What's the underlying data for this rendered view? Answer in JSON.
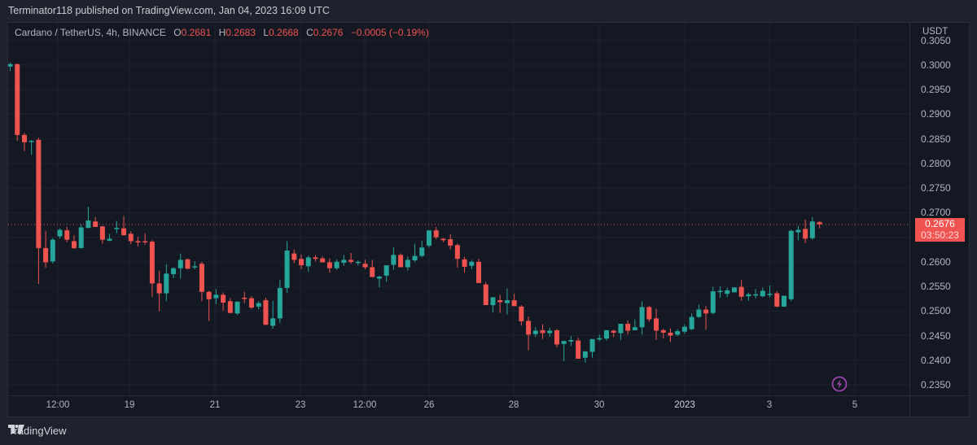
{
  "header": {
    "publisher_line": "Terminator118 published on TradingView.com, Jan 04, 2023 16:09 UTC"
  },
  "legend": {
    "symbol": "Cardano / TetherUS, 4h, BINANCE",
    "open_key": "O",
    "open": "0.2681",
    "high_key": "H",
    "high": "0.2683",
    "low_key": "L",
    "low": "0.2668",
    "close_key": "C",
    "close": "0.2676",
    "change": "−0.0005 (−0.19%)"
  },
  "price_scale": {
    "unit": "USDT",
    "last_price": "0.2676",
    "countdown": "03:50:23"
  },
  "footer": {
    "brand": "TradingView"
  },
  "colors": {
    "up": "#26a69a",
    "down": "#ef5350",
    "background": "#141823",
    "grid": "#1f2330",
    "last_line": "#ef5350",
    "bolt": "#ab47bc"
  },
  "chart_data": {
    "type": "candlestick",
    "title": "Cardano / TetherUS, 4h, BINANCE",
    "xlabel": "",
    "ylabel": "USDT",
    "ylim": [
      0.2335,
      0.3055
    ],
    "grid": true,
    "y_ticks": [
      "0.3050",
      "0.3000",
      "0.2950",
      "0.2900",
      "0.2850",
      "0.2800",
      "0.2750",
      "0.2700",
      "0.2650",
      "0.2600",
      "0.2550",
      "0.2500",
      "0.2450",
      "0.2400",
      "0.2350"
    ],
    "x_ticks": [
      {
        "label": "12:00",
        "x": 71
      },
      {
        "label": "19",
        "x": 159
      },
      {
        "label": "21",
        "x": 264
      },
      {
        "label": "23",
        "x": 369
      },
      {
        "label": "12:00",
        "x": 448
      },
      {
        "label": "26",
        "x": 527
      },
      {
        "label": "28",
        "x": 631
      },
      {
        "label": "30",
        "x": 736
      },
      {
        "label": "2023",
        "x": 841,
        "bold": true
      },
      {
        "label": "3",
        "x": 945
      },
      {
        "label": "5",
        "x": 1050
      }
    ],
    "last_price": 0.2676,
    "candles": [
      [
        0.2997,
        0.3005,
        0.2988,
        0.3002
      ],
      [
        0.3002,
        0.3003,
        0.2846,
        0.2858
      ],
      [
        0.2858,
        0.2862,
        0.2825,
        0.2843
      ],
      [
        0.2845,
        0.2847,
        0.2818,
        0.2846
      ],
      [
        0.2848,
        0.2852,
        0.2555,
        0.2628
      ],
      [
        0.2628,
        0.2663,
        0.2588,
        0.2599
      ],
      [
        0.2601,
        0.2648,
        0.2597,
        0.2645
      ],
      [
        0.2652,
        0.2668,
        0.2647,
        0.2665
      ],
      [
        0.2664,
        0.2671,
        0.264,
        0.2645
      ],
      [
        0.2642,
        0.2654,
        0.2626,
        0.2628
      ],
      [
        0.2628,
        0.2676,
        0.2627,
        0.267
      ],
      [
        0.2669,
        0.2712,
        0.2668,
        0.2684
      ],
      [
        0.2682,
        0.2691,
        0.2677,
        0.2671
      ],
      [
        0.2672,
        0.2673,
        0.2637,
        0.2645
      ],
      [
        0.2643,
        0.2657,
        0.2642,
        0.2647
      ],
      [
        0.2669,
        0.2683,
        0.2658,
        0.2669
      ],
      [
        0.2668,
        0.2693,
        0.2663,
        0.2654
      ],
      [
        0.2657,
        0.2662,
        0.2636,
        0.2642
      ],
      [
        0.2642,
        0.2651,
        0.2631,
        0.2641
      ],
      [
        0.2642,
        0.2658,
        0.2635,
        0.2641
      ],
      [
        0.2641,
        0.2644,
        0.2529,
        0.2556
      ],
      [
        0.2556,
        0.2582,
        0.25,
        0.2536
      ],
      [
        0.2536,
        0.2595,
        0.252,
        0.2576
      ],
      [
        0.2575,
        0.2589,
        0.2567,
        0.2587
      ],
      [
        0.2587,
        0.2617,
        0.2566,
        0.2604
      ],
      [
        0.2605,
        0.2607,
        0.2585,
        0.2586
      ],
      [
        0.259,
        0.2601,
        0.2585,
        0.2591
      ],
      [
        0.2596,
        0.26,
        0.252,
        0.2539
      ],
      [
        0.2539,
        0.2541,
        0.248,
        0.2524
      ],
      [
        0.2526,
        0.2545,
        0.2514,
        0.2533
      ],
      [
        0.2533,
        0.2538,
        0.2501,
        0.2517
      ],
      [
        0.252,
        0.2526,
        0.2498,
        0.2496
      ],
      [
        0.2495,
        0.25,
        0.2492,
        0.2519
      ],
      [
        0.2527,
        0.2539,
        0.2516,
        0.2526
      ],
      [
        0.2526,
        0.253,
        0.2504,
        0.2507
      ],
      [
        0.2509,
        0.252,
        0.2503,
        0.2516
      ],
      [
        0.2522,
        0.2527,
        0.2487,
        0.2472
      ],
      [
        0.247,
        0.2521,
        0.2464,
        0.2485
      ],
      [
        0.2485,
        0.2563,
        0.2476,
        0.2547
      ],
      [
        0.2547,
        0.2642,
        0.2537,
        0.2623
      ],
      [
        0.2617,
        0.2625,
        0.2597,
        0.2604
      ],
      [
        0.2606,
        0.2615,
        0.2585,
        0.2593
      ],
      [
        0.2591,
        0.2612,
        0.258,
        0.2609
      ],
      [
        0.2609,
        0.2614,
        0.2601,
        0.2606
      ],
      [
        0.2607,
        0.2611,
        0.2599,
        0.2599
      ],
      [
        0.2599,
        0.2607,
        0.2578,
        0.2587
      ],
      [
        0.2587,
        0.2605,
        0.2584,
        0.26
      ],
      [
        0.2598,
        0.2614,
        0.2592,
        0.2604
      ],
      [
        0.2604,
        0.2618,
        0.2596,
        0.26
      ],
      [
        0.2599,
        0.2603,
        0.2592,
        0.26
      ],
      [
        0.2596,
        0.2604,
        0.2585,
        0.2589
      ],
      [
        0.2589,
        0.2604,
        0.2575,
        0.2569
      ],
      [
        0.2566,
        0.2572,
        0.2548,
        0.257
      ],
      [
        0.2572,
        0.2585,
        0.2559,
        0.2593
      ],
      [
        0.2594,
        0.2629,
        0.2584,
        0.2614
      ],
      [
        0.2614,
        0.2617,
        0.2592,
        0.2589
      ],
      [
        0.2589,
        0.2611,
        0.2582,
        0.2604
      ],
      [
        0.2603,
        0.2637,
        0.26,
        0.2612
      ],
      [
        0.2612,
        0.2643,
        0.2609,
        0.2629
      ],
      [
        0.2633,
        0.2662,
        0.2629,
        0.2664
      ],
      [
        0.2664,
        0.2671,
        0.2646,
        0.265
      ],
      [
        0.2647,
        0.2648,
        0.264,
        0.2644
      ],
      [
        0.2646,
        0.2656,
        0.2625,
        0.2633
      ],
      [
        0.2634,
        0.2637,
        0.2588,
        0.2606
      ],
      [
        0.2605,
        0.261,
        0.2578,
        0.259
      ],
      [
        0.2592,
        0.2604,
        0.2585,
        0.26
      ],
      [
        0.26,
        0.2606,
        0.2567,
        0.2557
      ],
      [
        0.2554,
        0.2559,
        0.2525,
        0.2512
      ],
      [
        0.2512,
        0.2514,
        0.2497,
        0.2528
      ],
      [
        0.2522,
        0.2533,
        0.2496,
        0.2518
      ],
      [
        0.2516,
        0.2546,
        0.2493,
        0.2522
      ],
      [
        0.2522,
        0.2535,
        0.2512,
        0.251
      ],
      [
        0.2509,
        0.2512,
        0.247,
        0.2479
      ],
      [
        0.248,
        0.2489,
        0.242,
        0.2452
      ],
      [
        0.2453,
        0.2467,
        0.2447,
        0.246
      ],
      [
        0.2461,
        0.2473,
        0.2443,
        0.2455
      ],
      [
        0.2455,
        0.2466,
        0.2448,
        0.246
      ],
      [
        0.2461,
        0.2463,
        0.2426,
        0.2432
      ],
      [
        0.2433,
        0.2437,
        0.2398,
        0.2439
      ],
      [
        0.2438,
        0.2449,
        0.2429,
        0.2441
      ],
      [
        0.244,
        0.2446,
        0.2421,
        0.2403
      ],
      [
        0.2405,
        0.2411,
        0.2395,
        0.2418
      ],
      [
        0.2417,
        0.2434,
        0.2405,
        0.2443
      ],
      [
        0.2442,
        0.2452,
        0.2439,
        0.2445
      ],
      [
        0.2444,
        0.2459,
        0.244,
        0.2461
      ],
      [
        0.246,
        0.2462,
        0.2447,
        0.2456
      ],
      [
        0.2455,
        0.2464,
        0.2441,
        0.2474
      ],
      [
        0.2474,
        0.2481,
        0.2452,
        0.246
      ],
      [
        0.2461,
        0.2483,
        0.2464,
        0.2467
      ],
      [
        0.2467,
        0.252,
        0.2452,
        0.2508
      ],
      [
        0.2508,
        0.2511,
        0.2478,
        0.2483
      ],
      [
        0.2485,
        0.2505,
        0.2441,
        0.246
      ],
      [
        0.2461,
        0.2464,
        0.2444,
        0.2456
      ],
      [
        0.2456,
        0.2465,
        0.2437,
        0.245
      ],
      [
        0.2452,
        0.2463,
        0.2449,
        0.2459
      ],
      [
        0.2458,
        0.2473,
        0.2454,
        0.2468
      ],
      [
        0.2463,
        0.2495,
        0.2461,
        0.2488
      ],
      [
        0.2488,
        0.2513,
        0.2486,
        0.2503
      ],
      [
        0.2503,
        0.251,
        0.2462,
        0.2495
      ],
      [
        0.2496,
        0.2549,
        0.2493,
        0.254
      ],
      [
        0.2541,
        0.255,
        0.2527,
        0.2541
      ],
      [
        0.2535,
        0.2548,
        0.2528,
        0.2542
      ],
      [
        0.2538,
        0.2547,
        0.2541,
        0.2548
      ],
      [
        0.2549,
        0.2563,
        0.2521,
        0.2529
      ],
      [
        0.253,
        0.2537,
        0.2521,
        0.2534
      ],
      [
        0.2532,
        0.2545,
        0.2526,
        0.2534
      ],
      [
        0.253,
        0.2548,
        0.2528,
        0.2541
      ],
      [
        0.2535,
        0.2552,
        0.2528,
        0.2535
      ],
      [
        0.2536,
        0.254,
        0.2508,
        0.2509
      ],
      [
        0.2509,
        0.253,
        0.251,
        0.2531
      ],
      [
        0.2524,
        0.2665,
        0.252,
        0.2663
      ],
      [
        0.266,
        0.2673,
        0.2644,
        0.2665
      ],
      [
        0.2667,
        0.2686,
        0.2638,
        0.2647
      ],
      [
        0.2648,
        0.2691,
        0.2645,
        0.2682
      ],
      [
        0.2681,
        0.2683,
        0.2668,
        0.2676
      ]
    ]
  }
}
